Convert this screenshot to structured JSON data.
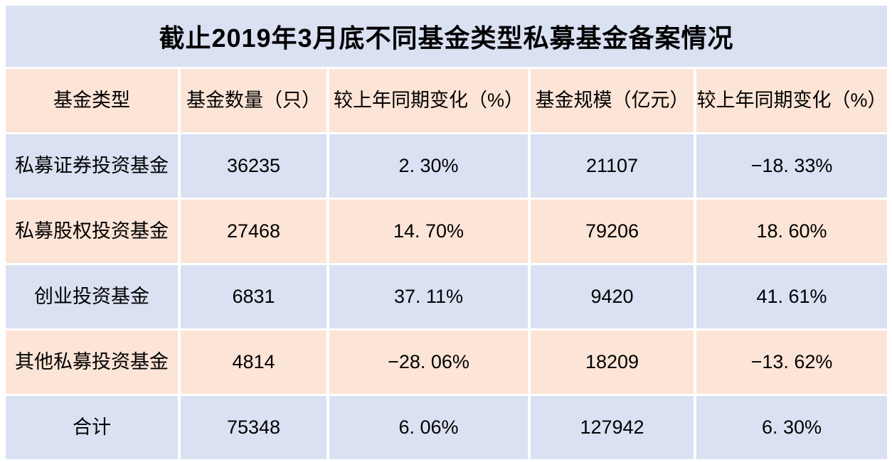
{
  "title": "截止2019年3月底不同基金类型私募基金备案情况",
  "table": {
    "columns": [
      "基金类型",
      "基金数量（只）",
      "较上年同期变化（%）",
      "基金规模（亿元）",
      "较上年同期变化（%）"
    ],
    "rows": [
      [
        "私募证券投资基金",
        "36235",
        "2. 30%",
        "21107",
        "−18. 33%"
      ],
      [
        "私募股权投资基金",
        "27468",
        "14. 70%",
        "79206",
        "18. 60%"
      ],
      [
        "创业投资基金",
        "6831",
        "37. 11%",
        "9420",
        "41. 61%"
      ],
      [
        "其他私募投资基金",
        "4814",
        "−28. 06%",
        "18209",
        "−13. 62%"
      ],
      [
        "合计",
        "75348",
        "6. 06%",
        "127942",
        "6. 30%"
      ]
    ]
  },
  "colors": {
    "title_bg": "#D9E1F2",
    "header_bg": "#FCE4D6",
    "row_blue_bg": "#D9E1F2",
    "row_peach_bg": "#FCE4D6",
    "gridline": "#FFFFFF",
    "text": "#000000"
  },
  "chart_data": {
    "type": "table",
    "title": "截止2019年3月底不同基金类型私募基金备案情况",
    "columns": [
      "基金类型",
      "基金数量（只）",
      "较上年同期变化（%）",
      "基金规模（亿元）",
      "较上年同期变化（%）"
    ],
    "rows": [
      {
        "fund_type": "私募证券投资基金",
        "fund_count": 36235,
        "count_yoy_change_pct": 2.3,
        "fund_scale_yi_yuan": 21107,
        "scale_yoy_change_pct": -18.33
      },
      {
        "fund_type": "私募股权投资基金",
        "fund_count": 27468,
        "count_yoy_change_pct": 14.7,
        "fund_scale_yi_yuan": 79206,
        "scale_yoy_change_pct": 18.6
      },
      {
        "fund_type": "创业投资基金",
        "fund_count": 6831,
        "count_yoy_change_pct": 37.11,
        "fund_scale_yi_yuan": 9420,
        "scale_yoy_change_pct": 41.61
      },
      {
        "fund_type": "其他私募投资基金",
        "fund_count": 4814,
        "count_yoy_change_pct": -28.06,
        "fund_scale_yi_yuan": 18209,
        "scale_yoy_change_pct": -13.62
      },
      {
        "fund_type": "合计",
        "fund_count": 75348,
        "count_yoy_change_pct": 6.06,
        "fund_scale_yi_yuan": 127942,
        "scale_yoy_change_pct": 6.3
      }
    ]
  }
}
